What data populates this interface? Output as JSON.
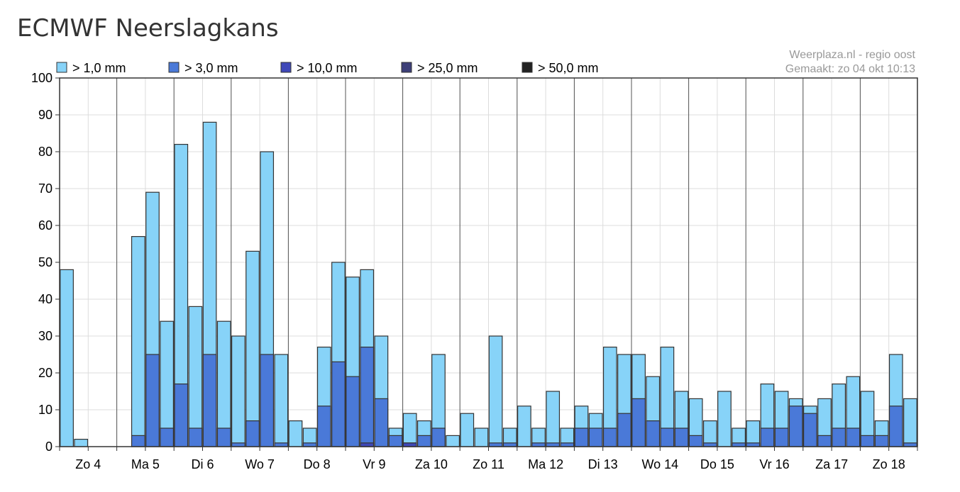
{
  "page": {
    "title": "ECMWF Neerslagkans",
    "credit_line1": "Weerplaza.nl - regio oost",
    "credit_line2": "Gemaakt: zo 04 okt 10:13"
  },
  "chart_data": {
    "type": "bar",
    "ylim": [
      0,
      100
    ],
    "yticks": [
      0,
      10,
      20,
      30,
      40,
      50,
      60,
      70,
      80,
      90,
      100
    ],
    "grid": true,
    "legend_position": "top",
    "day_labels": [
      "Zo 4",
      "Ma 5",
      "Di 6",
      "Wo 7",
      "Do 8",
      "Vr 9",
      "Za 10",
      "Zo 11",
      "Ma 12",
      "Di 13",
      "Wo 14",
      "Do 15",
      "Vr 16",
      "Za 17",
      "Zo 18"
    ],
    "series": [
      {
        "name": "> 1,0 mm",
        "color": "#87d3f8",
        "values": [
          48,
          2,
          0,
          0,
          0,
          57,
          69,
          34,
          82,
          38,
          88,
          34,
          30,
          53,
          80,
          25,
          7,
          5,
          27,
          50,
          46,
          48,
          30,
          5,
          9,
          7,
          25,
          3,
          9,
          5,
          30,
          5,
          11,
          5,
          15,
          5,
          11,
          9,
          27,
          25,
          25,
          19,
          27,
          15,
          13,
          7,
          15,
          5,
          7,
          17,
          15,
          13,
          11,
          13,
          17,
          19,
          15,
          7,
          25,
          13
        ]
      },
      {
        "name": "> 3,0 mm",
        "color": "#4a79d8",
        "values": [
          0,
          0,
          0,
          0,
          0,
          3,
          25,
          5,
          17,
          5,
          25,
          5,
          1,
          7,
          25,
          1,
          0,
          1,
          11,
          23,
          19,
          27,
          13,
          3,
          1,
          3,
          5,
          0,
          0,
          0,
          1,
          1,
          0,
          1,
          1,
          1,
          5,
          5,
          5,
          9,
          13,
          7,
          5,
          5,
          3,
          1,
          0,
          1,
          1,
          5,
          5,
          11,
          9,
          3,
          5,
          5,
          3,
          3,
          11,
          1
        ]
      },
      {
        "name": "> 10,0 mm",
        "color": "#3f48b8",
        "values": [
          0,
          0,
          0,
          0,
          0,
          0,
          0,
          0,
          0,
          0,
          0,
          0,
          0,
          0,
          0,
          0,
          0,
          0,
          0,
          0,
          0,
          1,
          0,
          0,
          1,
          0,
          0,
          0,
          0,
          0,
          0,
          0,
          0,
          0,
          0,
          0,
          0,
          0,
          0,
          0,
          0,
          0,
          0,
          0,
          0,
          0,
          0,
          0,
          0,
          0,
          0,
          0,
          0,
          0,
          0,
          0,
          0,
          0,
          0,
          0
        ]
      },
      {
        "name": "> 25,0 mm",
        "color": "#3d3f78",
        "values": [
          0,
          0,
          0,
          0,
          0,
          0,
          0,
          0,
          0,
          0,
          0,
          0,
          0,
          0,
          0,
          0,
          0,
          0,
          0,
          0,
          0,
          0,
          0,
          0,
          0,
          0,
          0,
          0,
          0,
          0,
          0,
          0,
          0,
          0,
          0,
          0,
          0,
          0,
          0,
          0,
          0,
          0,
          0,
          0,
          0,
          0,
          0,
          0,
          0,
          0,
          0,
          0,
          0,
          0,
          0,
          0,
          0,
          0,
          0,
          0
        ]
      },
      {
        "name": "> 50,0 mm",
        "color": "#222222",
        "values": [
          0,
          0,
          0,
          0,
          0,
          0,
          0,
          0,
          0,
          0,
          0,
          0,
          0,
          0,
          0,
          0,
          0,
          0,
          0,
          0,
          0,
          0,
          0,
          0,
          0,
          0,
          0,
          0,
          0,
          0,
          0,
          0,
          0,
          0,
          0,
          0,
          0,
          0,
          0,
          0,
          0,
          0,
          0,
          0,
          0,
          0,
          0,
          0,
          0,
          0,
          0,
          0,
          0,
          0,
          0,
          0,
          0,
          0,
          0,
          0
        ]
      }
    ]
  }
}
